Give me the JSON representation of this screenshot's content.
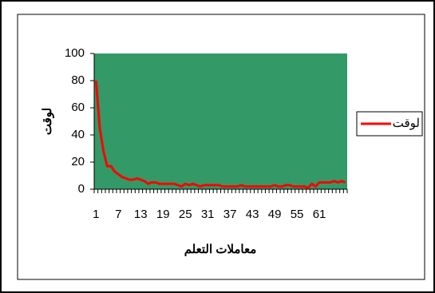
{
  "chart_data": {
    "type": "line",
    "y_label": "لوقت",
    "x_label": "معاملات التعلم",
    "categories": [
      "1",
      null,
      null,
      null,
      null,
      null,
      "7",
      null,
      null,
      null,
      null,
      null,
      "13",
      null,
      null,
      null,
      null,
      null,
      "19",
      null,
      null,
      null,
      null,
      null,
      "25",
      null,
      null,
      null,
      null,
      null,
      "31",
      null,
      null,
      null,
      null,
      null,
      "37",
      null,
      null,
      null,
      null,
      null,
      "43",
      null,
      null,
      null,
      null,
      null,
      "49",
      null,
      null,
      null,
      null,
      null,
      "55",
      null,
      null,
      null,
      null,
      null,
      "61",
      null,
      null,
      null,
      null,
      null,
      null,
      null
    ],
    "series": [
      {
        "name": "لوقت",
        "color": "#ff0000",
        "values": [
          80,
          45,
          28,
          17,
          17,
          13,
          11,
          9,
          8,
          7,
          7,
          8,
          7,
          6,
          4,
          5,
          5,
          4,
          4,
          4,
          4,
          4,
          3,
          2,
          4,
          3,
          4,
          3,
          2,
          3,
          3,
          3,
          3,
          3,
          2,
          2,
          2,
          2,
          2,
          3,
          2,
          2,
          2,
          2,
          2,
          2,
          2,
          2,
          3,
          2,
          2,
          3,
          3,
          2,
          2,
          2,
          2,
          1,
          4,
          2,
          5,
          5,
          5,
          5,
          6,
          5,
          6,
          5
        ]
      }
    ],
    "ylim": [
      0,
      100
    ],
    "yticks": [
      0,
      20,
      40,
      60,
      80,
      100
    ],
    "plot_background": "#339966",
    "legend": "right"
  }
}
